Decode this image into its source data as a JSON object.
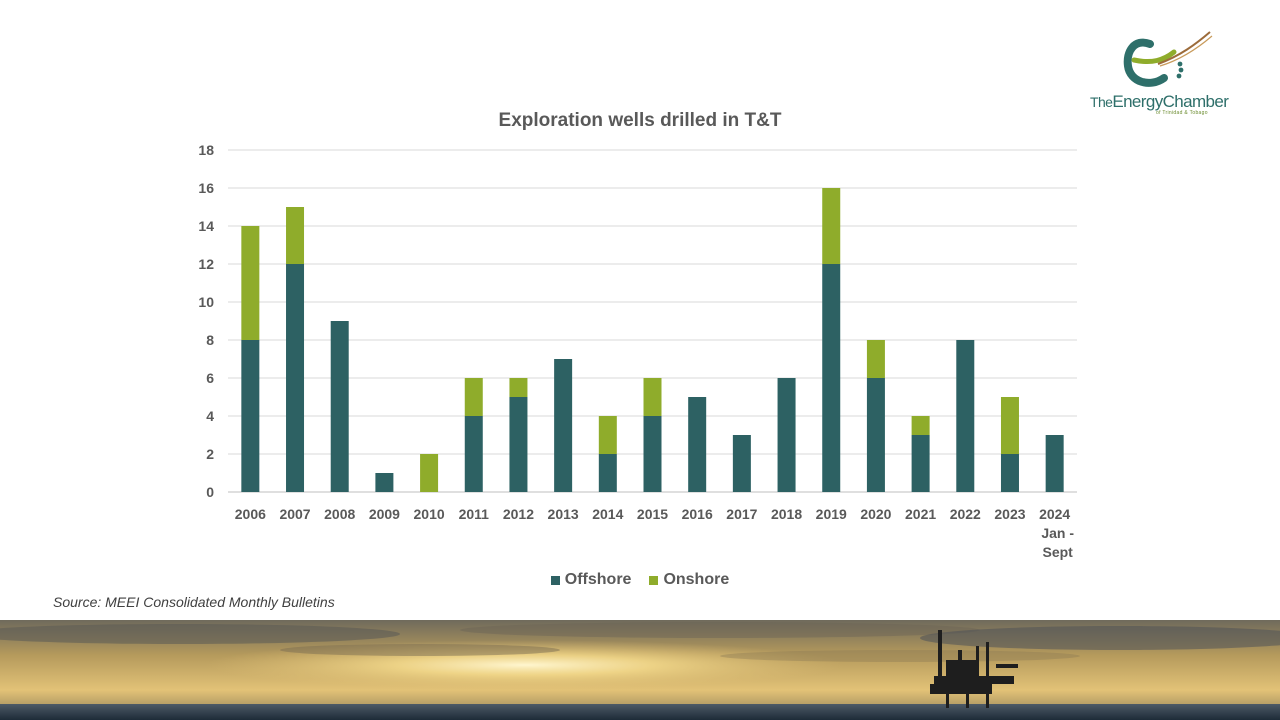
{
  "logo": {
    "text_the": "The",
    "text_energy": "Energy",
    "text_chamber": "Chamber",
    "subtitle": "of Trinidad & Tobago"
  },
  "source_text": "Source: MEEI Consolidated Monthly Bulletins",
  "colors": {
    "offshore": "#2d6163",
    "onshore": "#8fac2b",
    "grid": "#d9d9d9",
    "text": "#595959"
  },
  "chart_data": {
    "type": "bar",
    "stacked": true,
    "title": "Exploration wells drilled in T&T",
    "categories": [
      "2006",
      "2007",
      "2008",
      "2009",
      "2010",
      "2011",
      "2012",
      "2013",
      "2014",
      "2015",
      "2016",
      "2017",
      "2018",
      "2019",
      "2020",
      "2021",
      "2022",
      "2023",
      "2024 Jan - Sept"
    ],
    "series": [
      {
        "name": "Offshore",
        "values": [
          8,
          12,
          9,
          1,
          0,
          4,
          5,
          7,
          2,
          4,
          5,
          3,
          6,
          12,
          6,
          3,
          8,
          2,
          3
        ]
      },
      {
        "name": "Onshore",
        "values": [
          6,
          3,
          0,
          0,
          2,
          2,
          1,
          0,
          2,
          2,
          0,
          0,
          0,
          4,
          2,
          1,
          0,
          3,
          0
        ]
      }
    ],
    "ylim": [
      0,
      18
    ],
    "yticks": [
      0,
      2,
      4,
      6,
      8,
      10,
      12,
      14,
      16,
      18
    ],
    "grid": true,
    "legend_position": "bottom"
  }
}
